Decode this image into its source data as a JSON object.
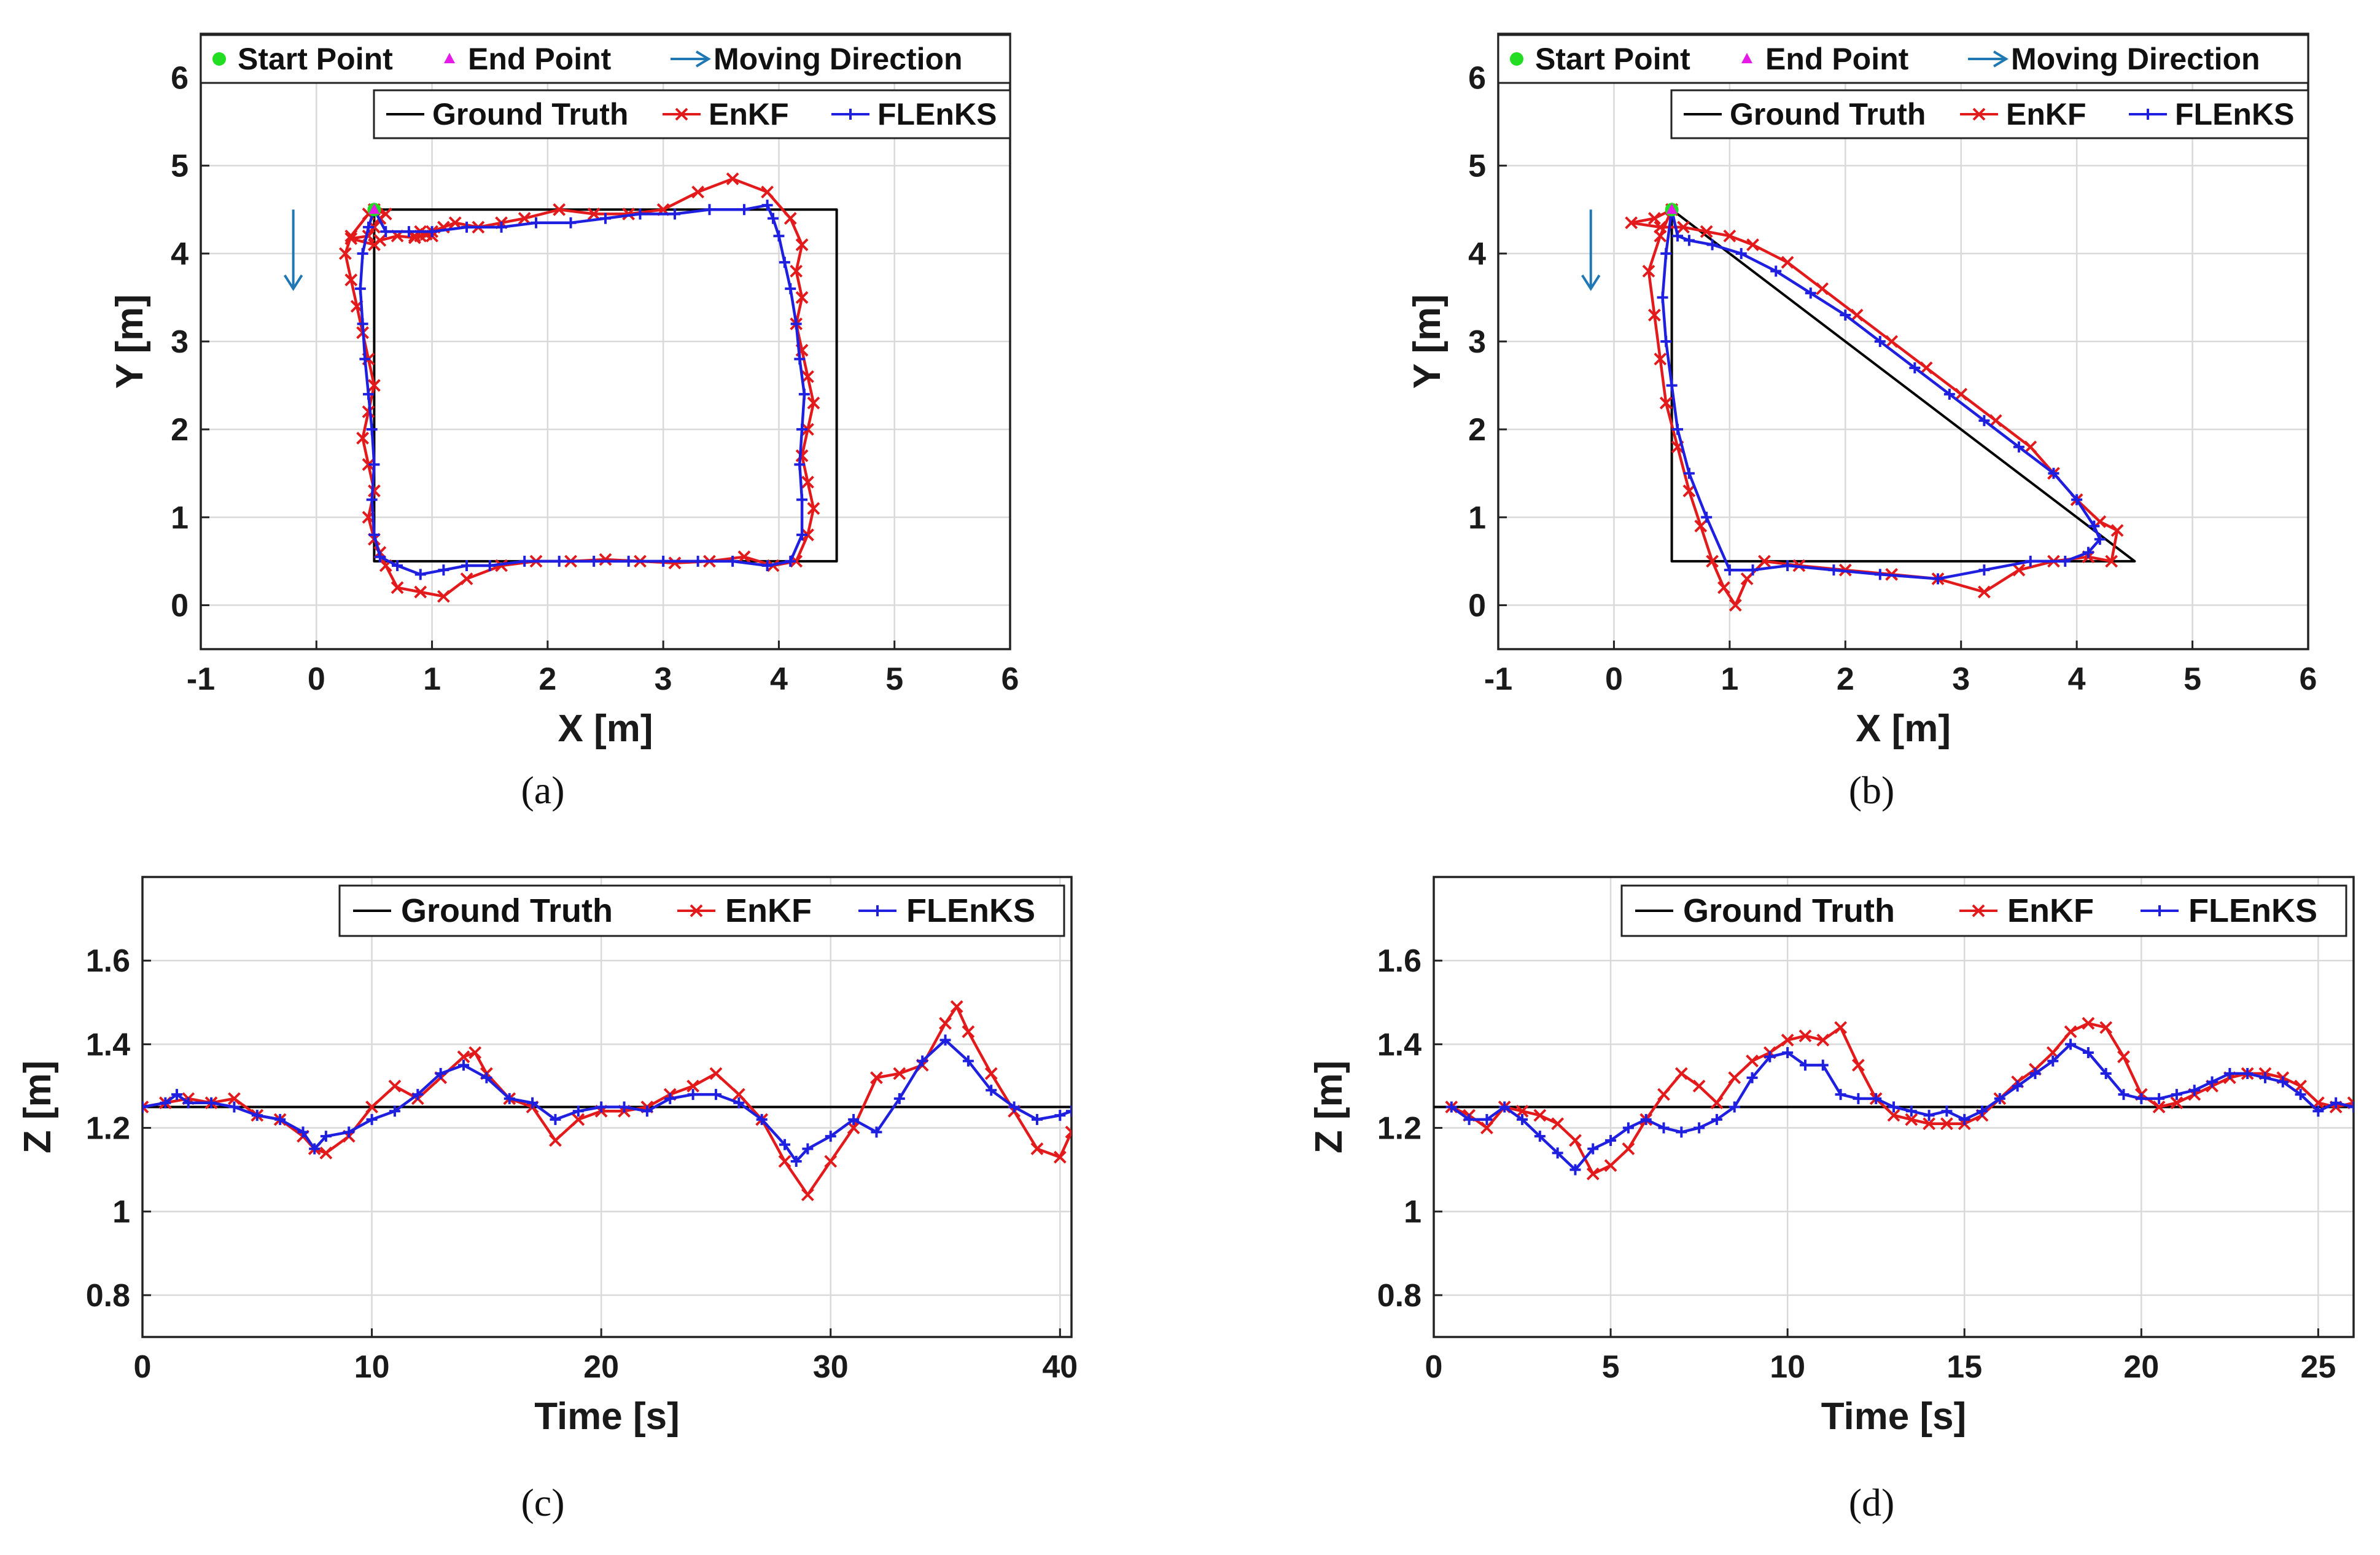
{
  "chart_data": [
    {
      "id": "a",
      "type": "line",
      "caption": "(a)",
      "xlabel": "X [m]",
      "ylabel": "Y [m]",
      "xlim": [
        -1,
        6
      ],
      "ylim": [
        -0.5,
        6.5
      ],
      "xticks": [
        "-1",
        "0",
        "1",
        "2",
        "3",
        "4",
        "5",
        "6"
      ],
      "yticks": [
        "0",
        "1",
        "2",
        "3",
        "4",
        "5",
        "6"
      ],
      "grid": true,
      "legend_top": [
        "Start Point",
        "End Point",
        "Moving Direction"
      ],
      "legend_bottom": [
        "Ground Truth",
        "EnKF",
        "FLEnKS"
      ],
      "start_point": [
        0.5,
        4.5
      ],
      "end_point": [
        0.5,
        4.5
      ],
      "arrow": {
        "x": -0.2,
        "y_from": 4.5,
        "y_to": 3.6
      },
      "series": [
        {
          "name": "Ground Truth",
          "color": "#000000",
          "marker": "none",
          "x": [
            0.5,
            4.5,
            4.5,
            0.5,
            0.5
          ],
          "y": [
            4.5,
            4.5,
            0.5,
            0.5,
            4.5
          ]
        },
        {
          "name": "EnKF",
          "color": "#e31a1c",
          "marker": "x",
          "x": [
            0.5,
            0.45,
            0.3,
            0.25,
            0.3,
            0.35,
            0.4,
            0.45,
            0.5,
            0.45,
            0.4,
            0.45,
            0.5,
            0.45,
            0.5,
            0.55,
            0.6,
            0.7,
            0.9,
            1.1,
            1.3,
            1.6,
            1.9,
            2.2,
            2.5,
            2.8,
            3.1,
            3.4,
            3.7,
            3.95,
            4.15,
            4.25,
            4.3,
            4.25,
            4.2,
            4.25,
            4.3,
            4.25,
            4.2,
            4.15,
            4.2,
            4.15,
            4.2,
            4.1,
            3.9,
            3.6,
            3.3,
            3.0,
            2.7,
            2.4,
            2.1,
            1.8,
            1.6,
            1.4,
            1.2,
            1.1,
            1.0,
            0.9,
            0.85,
            0.9,
            1.0,
            0.95,
            0.85,
            0.7,
            0.55,
            0.5,
            0.3,
            0.45,
            0.5,
            0.55,
            0.6,
            0.5
          ],
          "y": [
            4.5,
            4.45,
            4.2,
            4.0,
            3.7,
            3.4,
            3.1,
            2.8,
            2.5,
            2.2,
            1.9,
            1.6,
            1.3,
            1.0,
            0.75,
            0.6,
            0.45,
            0.2,
            0.15,
            0.1,
            0.3,
            0.45,
            0.5,
            0.5,
            0.52,
            0.5,
            0.48,
            0.5,
            0.55,
            0.45,
            0.5,
            0.8,
            1.1,
            1.4,
            1.7,
            2.0,
            2.3,
            2.6,
            2.9,
            3.2,
            3.5,
            3.8,
            4.1,
            4.4,
            4.7,
            4.85,
            4.7,
            4.5,
            4.45,
            4.45,
            4.5,
            4.4,
            4.35,
            4.3,
            4.35,
            4.3,
            4.25,
            4.2,
            4.2,
            4.25,
            4.2,
            4.22,
            4.18,
            4.2,
            4.15,
            4.1,
            4.17,
            4.2,
            4.3,
            4.4,
            4.45,
            4.5
          ]
        },
        {
          "name": "FLEnKS",
          "color": "#1f1fe0",
          "marker": "+",
          "x": [
            0.5,
            0.45,
            0.4,
            0.38,
            0.4,
            0.42,
            0.45,
            0.48,
            0.5,
            0.48,
            0.5,
            0.55,
            0.7,
            0.9,
            1.1,
            1.3,
            1.5,
            1.8,
            2.1,
            2.4,
            2.7,
            3.0,
            3.3,
            3.6,
            3.9,
            4.1,
            4.2,
            4.2,
            4.18,
            4.2,
            4.22,
            4.18,
            4.15,
            4.1,
            4.05,
            4.0,
            3.95,
            3.9,
            3.7,
            3.4,
            3.1,
            2.8,
            2.5,
            2.2,
            1.9,
            1.6,
            1.3,
            1.0,
            0.8,
            0.6,
            0.5
          ],
          "y": [
            4.5,
            4.3,
            4.0,
            3.6,
            3.2,
            2.8,
            2.4,
            2.0,
            1.6,
            1.2,
            0.8,
            0.55,
            0.45,
            0.35,
            0.4,
            0.45,
            0.45,
            0.5,
            0.5,
            0.5,
            0.5,
            0.5,
            0.5,
            0.5,
            0.45,
            0.5,
            0.8,
            1.2,
            1.6,
            2.0,
            2.4,
            2.8,
            3.2,
            3.6,
            3.9,
            4.2,
            4.4,
            4.55,
            4.5,
            4.5,
            4.45,
            4.45,
            4.4,
            4.35,
            4.35,
            4.3,
            4.3,
            4.25,
            4.25,
            4.25,
            4.5
          ]
        }
      ]
    },
    {
      "id": "b",
      "type": "line",
      "caption": "(b)",
      "xlabel": "X [m]",
      "ylabel": "Y [m]",
      "xlim": [
        -1,
        6
      ],
      "ylim": [
        -0.5,
        6.5
      ],
      "xticks": [
        "-1",
        "0",
        "1",
        "2",
        "3",
        "4",
        "5",
        "6"
      ],
      "yticks": [
        "0",
        "1",
        "2",
        "3",
        "4",
        "5",
        "6"
      ],
      "grid": true,
      "legend_top": [
        "Start Point",
        "End Point",
        "Moving Direction"
      ],
      "legend_bottom": [
        "Ground Truth",
        "EnKF",
        "FLEnKS"
      ],
      "start_point": [
        0.5,
        4.5
      ],
      "end_point": [
        0.5,
        4.5
      ],
      "arrow": {
        "x": -0.2,
        "y_from": 4.5,
        "y_to": 3.6
      },
      "series": [
        {
          "name": "Ground Truth",
          "color": "#000000",
          "marker": "none",
          "x": [
            0.5,
            4.5,
            0.5,
            0.5
          ],
          "y": [
            4.5,
            0.5,
            0.5,
            4.5
          ]
        },
        {
          "name": "EnKF",
          "color": "#e31a1c",
          "marker": "x",
          "x": [
            0.5,
            0.4,
            0.3,
            0.35,
            0.4,
            0.45,
            0.55,
            0.65,
            0.75,
            0.85,
            0.95,
            1.05,
            1.15,
            1.3,
            1.6,
            2.0,
            2.4,
            2.8,
            3.2,
            3.5,
            3.8,
            4.1,
            4.3,
            4.35,
            4.2,
            4.0,
            3.8,
            3.6,
            3.3,
            3.0,
            2.7,
            2.4,
            2.1,
            1.8,
            1.5,
            1.2,
            1.0,
            0.8,
            0.6,
            0.4,
            0.15,
            0.35,
            0.5
          ],
          "y": [
            4.5,
            4.2,
            3.8,
            3.3,
            2.8,
            2.3,
            1.8,
            1.3,
            0.9,
            0.5,
            0.2,
            0.0,
            0.3,
            0.5,
            0.45,
            0.4,
            0.35,
            0.3,
            0.15,
            0.4,
            0.5,
            0.55,
            0.5,
            0.85,
            0.95,
            1.2,
            1.5,
            1.8,
            2.1,
            2.4,
            2.7,
            3.0,
            3.3,
            3.6,
            3.9,
            4.1,
            4.2,
            4.25,
            4.3,
            4.3,
            4.35,
            4.4,
            4.5
          ]
        },
        {
          "name": "FLEnKS",
          "color": "#1f1fe0",
          "marker": "+",
          "x": [
            0.5,
            0.45,
            0.42,
            0.45,
            0.5,
            0.55,
            0.65,
            0.8,
            1.0,
            1.2,
            1.5,
            1.9,
            2.3,
            2.8,
            3.2,
            3.6,
            3.9,
            4.1,
            4.2,
            4.15,
            4.0,
            3.8,
            3.5,
            3.2,
            2.9,
            2.6,
            2.3,
            2.0,
            1.7,
            1.4,
            1.1,
            0.85,
            0.65,
            0.55,
            0.5
          ],
          "y": [
            4.5,
            4.0,
            3.5,
            3.0,
            2.5,
            2.0,
            1.5,
            1.0,
            0.4,
            0.4,
            0.45,
            0.4,
            0.35,
            0.3,
            0.4,
            0.5,
            0.5,
            0.6,
            0.75,
            0.9,
            1.2,
            1.5,
            1.8,
            2.1,
            2.4,
            2.7,
            3.0,
            3.3,
            3.55,
            3.8,
            4.0,
            4.1,
            4.15,
            4.2,
            4.5
          ]
        }
      ]
    },
    {
      "id": "c",
      "type": "line",
      "caption": "(c)",
      "xlabel": "Time [s]",
      "ylabel": "Z [m]",
      "xlim": [
        0,
        40.5
      ],
      "ylim": [
        0.7,
        1.8
      ],
      "xticks": [
        "0",
        "10",
        "20",
        "30",
        "40"
      ],
      "yticks": [
        "0.8",
        "1",
        "1.2",
        "1.4",
        "1.6"
      ],
      "grid": true,
      "legend": [
        "Ground Truth",
        "EnKF",
        "FLEnKS"
      ],
      "series": [
        {
          "name": "Ground Truth",
          "color": "#000000",
          "marker": "none",
          "x": [
            0,
            40.5
          ],
          "y": [
            1.25,
            1.25
          ]
        },
        {
          "name": "EnKF",
          "color": "#e31a1c",
          "marker": "x",
          "x": [
            0,
            1,
            2,
            3,
            4,
            5,
            6,
            7,
            7.5,
            8,
            9,
            10,
            11,
            12,
            13,
            14,
            14.5,
            15,
            16,
            17,
            18,
            19,
            20,
            21,
            22,
            23,
            24,
            25,
            26,
            27,
            28,
            29,
            30,
            31,
            32,
            33,
            34,
            35,
            35.5,
            36,
            37,
            38,
            39,
            40,
            40.5
          ],
          "y": [
            1.25,
            1.26,
            1.27,
            1.26,
            1.27,
            1.23,
            1.22,
            1.18,
            1.15,
            1.14,
            1.18,
            1.25,
            1.3,
            1.27,
            1.32,
            1.37,
            1.38,
            1.33,
            1.27,
            1.25,
            1.17,
            1.22,
            1.24,
            1.24,
            1.25,
            1.28,
            1.3,
            1.33,
            1.28,
            1.22,
            1.12,
            1.04,
            1.12,
            1.2,
            1.32,
            1.33,
            1.35,
            1.45,
            1.49,
            1.43,
            1.33,
            1.24,
            1.15,
            1.13,
            1.19
          ]
        },
        {
          "name": "FLEnKS",
          "color": "#1f1fe0",
          "marker": "+",
          "x": [
            0,
            1,
            1.5,
            2,
            3,
            4,
            5,
            6,
            7,
            7.5,
            8,
            9,
            10,
            11,
            12,
            13,
            14,
            15,
            16,
            17,
            18,
            19,
            20,
            21,
            22,
            23,
            24,
            25,
            26,
            27,
            28,
            28.5,
            29,
            30,
            31,
            32,
            33,
            34,
            35,
            36,
            37,
            38,
            39,
            40,
            40.5
          ],
          "y": [
            1.25,
            1.26,
            1.28,
            1.26,
            1.26,
            1.25,
            1.23,
            1.22,
            1.19,
            1.15,
            1.18,
            1.19,
            1.22,
            1.24,
            1.28,
            1.33,
            1.35,
            1.32,
            1.27,
            1.26,
            1.22,
            1.24,
            1.25,
            1.25,
            1.24,
            1.27,
            1.28,
            1.28,
            1.26,
            1.22,
            1.16,
            1.12,
            1.15,
            1.18,
            1.22,
            1.19,
            1.27,
            1.36,
            1.41,
            1.36,
            1.29,
            1.25,
            1.22,
            1.23,
            1.24
          ]
        }
      ]
    },
    {
      "id": "d",
      "type": "line",
      "caption": "(d)",
      "xlabel": "Time [s]",
      "ylabel": "Z [m]",
      "xlim": [
        0,
        26
      ],
      "ylim": [
        0.7,
        1.8
      ],
      "xticks": [
        "0",
        "5",
        "10",
        "15",
        "20",
        "25"
      ],
      "yticks": [
        "0.8",
        "1",
        "1.2",
        "1.4",
        "1.6"
      ],
      "grid": true,
      "legend": [
        "Ground Truth",
        "EnKF",
        "FLEnKS"
      ],
      "series": [
        {
          "name": "Ground Truth",
          "color": "#000000",
          "marker": "none",
          "x": [
            0,
            26
          ],
          "y": [
            1.25,
            1.25
          ]
        },
        {
          "name": "EnKF",
          "color": "#e31a1c",
          "marker": "x",
          "x": [
            0.5,
            1,
            1.5,
            2,
            2.5,
            3,
            3.5,
            4,
            4.5,
            5,
            5.5,
            6,
            6.5,
            7,
            7.5,
            8,
            8.5,
            9,
            9.5,
            10,
            10.5,
            11,
            11.5,
            12,
            12.5,
            13,
            13.5,
            14,
            14.5,
            15,
            15.5,
            16,
            16.5,
            17,
            17.5,
            18,
            18.5,
            19,
            19.5,
            20,
            20.5,
            21,
            21.5,
            22,
            22.5,
            23,
            23.5,
            24,
            24.5,
            25,
            25.5,
            26
          ],
          "y": [
            1.25,
            1.23,
            1.2,
            1.25,
            1.24,
            1.23,
            1.21,
            1.17,
            1.09,
            1.11,
            1.15,
            1.22,
            1.28,
            1.33,
            1.3,
            1.26,
            1.32,
            1.36,
            1.38,
            1.41,
            1.42,
            1.41,
            1.44,
            1.35,
            1.27,
            1.23,
            1.22,
            1.21,
            1.21,
            1.21,
            1.23,
            1.27,
            1.31,
            1.34,
            1.38,
            1.43,
            1.45,
            1.44,
            1.37,
            1.28,
            1.25,
            1.26,
            1.28,
            1.3,
            1.32,
            1.33,
            1.33,
            1.32,
            1.3,
            1.26,
            1.25,
            1.26
          ]
        },
        {
          "name": "FLEnKS",
          "color": "#1f1fe0",
          "marker": "+",
          "x": [
            0.5,
            1,
            1.5,
            2,
            2.5,
            3,
            3.5,
            4,
            4.5,
            5,
            5.5,
            6,
            6.5,
            7,
            7.5,
            8,
            8.5,
            9,
            9.5,
            10,
            10.5,
            11,
            11.5,
            12,
            12.5,
            13,
            13.5,
            14,
            14.5,
            15,
            15.5,
            16,
            16.5,
            17,
            17.5,
            18,
            18.5,
            19,
            19.5,
            20,
            20.5,
            21,
            21.5,
            22,
            22.5,
            23,
            23.5,
            24,
            24.5,
            25,
            25.5,
            26
          ],
          "y": [
            1.25,
            1.22,
            1.22,
            1.25,
            1.22,
            1.18,
            1.14,
            1.1,
            1.15,
            1.17,
            1.2,
            1.22,
            1.2,
            1.19,
            1.2,
            1.22,
            1.25,
            1.32,
            1.37,
            1.38,
            1.35,
            1.35,
            1.28,
            1.27,
            1.27,
            1.25,
            1.24,
            1.23,
            1.24,
            1.22,
            1.24,
            1.27,
            1.3,
            1.33,
            1.36,
            1.4,
            1.38,
            1.33,
            1.28,
            1.27,
            1.27,
            1.28,
            1.29,
            1.31,
            1.33,
            1.33,
            1.32,
            1.31,
            1.28,
            1.24,
            1.26,
            1.25
          ]
        }
      ]
    }
  ]
}
